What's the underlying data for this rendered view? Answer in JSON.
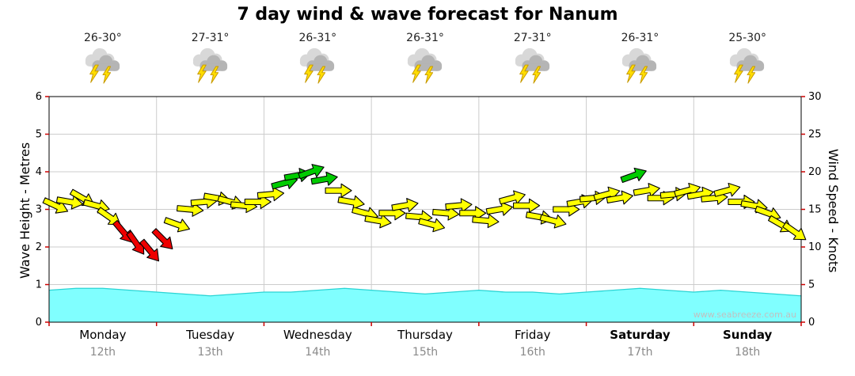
{
  "header": {
    "title": "7 day wind & wave forecast for Nanum"
  },
  "watermark": "www.seabreeze.com.au",
  "chart_data": {
    "type": "area",
    "subtype": "wind-wave-forecast",
    "title": "7 day wind & wave forecast for Nanum",
    "days": [
      {
        "name": "Monday",
        "date": "12th",
        "temp": "26-30°",
        "icon": "storm-icon",
        "bold": false
      },
      {
        "name": "Tuesday",
        "date": "13th",
        "temp": "27-31°",
        "icon": "storm-icon",
        "bold": false
      },
      {
        "name": "Wednesday",
        "date": "14th",
        "temp": "26-31°",
        "icon": "storm-icon",
        "bold": false
      },
      {
        "name": "Thursday",
        "date": "15th",
        "temp": "26-31°",
        "icon": "storm-icon",
        "bold": false
      },
      {
        "name": "Friday",
        "date": "16th",
        "temp": "27-31°",
        "icon": "storm-icon",
        "bold": false
      },
      {
        "name": "Saturday",
        "date": "17th",
        "temp": "26-31°",
        "icon": "storm-icon",
        "bold": true
      },
      {
        "name": "Sunday",
        "date": "18th",
        "temp": "25-30°",
        "icon": "storm-icon",
        "bold": true
      }
    ],
    "left_axis": {
      "label": "Wave Height - Metres",
      "min": 0,
      "max": 6,
      "ticks": [
        0,
        1,
        2,
        3,
        4,
        5,
        6
      ]
    },
    "right_axis": {
      "label": "Wind Speed - Knots",
      "min": 0,
      "max": 30,
      "ticks": [
        0,
        5,
        10,
        15,
        20,
        25,
        30
      ]
    },
    "grid": "on",
    "wave_height_m": {
      "t_step_days": 0.25,
      "values": [
        0.85,
        0.9,
        0.9,
        0.85,
        0.8,
        0.75,
        0.7,
        0.75,
        0.8,
        0.8,
        0.85,
        0.9,
        0.85,
        0.8,
        0.75,
        0.8,
        0.85,
        0.8,
        0.8,
        0.75,
        0.8,
        0.85,
        0.9,
        0.85,
        0.8,
        0.85,
        0.8,
        0.75,
        0.7
      ]
    },
    "wind_arrows": {
      "units": "knots",
      "points": [
        {
          "t": 0.06,
          "kn": 15.5,
          "dir": 25,
          "c": "y"
        },
        {
          "t": 0.19,
          "kn": 16.0,
          "dir": 10,
          "c": "y"
        },
        {
          "t": 0.31,
          "kn": 16.5,
          "dir": 30,
          "c": "y"
        },
        {
          "t": 0.44,
          "kn": 15.5,
          "dir": 15,
          "c": "y"
        },
        {
          "t": 0.56,
          "kn": 14.0,
          "dir": 35,
          "c": "y"
        },
        {
          "t": 0.69,
          "kn": 12.0,
          "dir": 50,
          "c": "r"
        },
        {
          "t": 0.81,
          "kn": 10.5,
          "dir": 55,
          "c": "r"
        },
        {
          "t": 0.94,
          "kn": 9.5,
          "dir": 50,
          "c": "r"
        },
        {
          "t": 1.06,
          "kn": 11.0,
          "dir": 45,
          "c": "r"
        },
        {
          "t": 1.19,
          "kn": 13.0,
          "dir": 20,
          "c": "y"
        },
        {
          "t": 1.31,
          "kn": 15.0,
          "dir": 5,
          "c": "y"
        },
        {
          "t": 1.44,
          "kn": 16.0,
          "dir": -5,
          "c": "y"
        },
        {
          "t": 1.56,
          "kn": 16.5,
          "dir": 10,
          "c": "y"
        },
        {
          "t": 1.69,
          "kn": 16.0,
          "dir": 15,
          "c": "y"
        },
        {
          "t": 1.81,
          "kn": 15.5,
          "dir": 5,
          "c": "y"
        },
        {
          "t": 1.94,
          "kn": 16.0,
          "dir": 0,
          "c": "y"
        },
        {
          "t": 2.06,
          "kn": 17.0,
          "dir": -5,
          "c": "y"
        },
        {
          "t": 2.19,
          "kn": 18.5,
          "dir": -15,
          "c": "g"
        },
        {
          "t": 2.31,
          "kn": 19.5,
          "dir": -10,
          "c": "g"
        },
        {
          "t": 2.44,
          "kn": 20.0,
          "dir": -20,
          "c": "g"
        },
        {
          "t": 2.56,
          "kn": 19.0,
          "dir": -10,
          "c": "g"
        },
        {
          "t": 2.69,
          "kn": 17.5,
          "dir": 0,
          "c": "y"
        },
        {
          "t": 2.81,
          "kn": 16.0,
          "dir": 10,
          "c": "y"
        },
        {
          "t": 2.94,
          "kn": 14.5,
          "dir": 15,
          "c": "y"
        },
        {
          "t": 3.06,
          "kn": 13.5,
          "dir": 10,
          "c": "y"
        },
        {
          "t": 3.19,
          "kn": 14.5,
          "dir": 0,
          "c": "y"
        },
        {
          "t": 3.31,
          "kn": 15.5,
          "dir": -10,
          "c": "y"
        },
        {
          "t": 3.44,
          "kn": 14.0,
          "dir": 5,
          "c": "y"
        },
        {
          "t": 3.56,
          "kn": 13.0,
          "dir": 15,
          "c": "y"
        },
        {
          "t": 3.69,
          "kn": 14.5,
          "dir": 5,
          "c": "y"
        },
        {
          "t": 3.81,
          "kn": 15.5,
          "dir": -5,
          "c": "y"
        },
        {
          "t": 3.94,
          "kn": 14.5,
          "dir": 0,
          "c": "y"
        },
        {
          "t": 4.06,
          "kn": 13.5,
          "dir": 5,
          "c": "y"
        },
        {
          "t": 4.19,
          "kn": 15.0,
          "dir": -10,
          "c": "y"
        },
        {
          "t": 4.31,
          "kn": 16.5,
          "dir": -15,
          "c": "y"
        },
        {
          "t": 4.44,
          "kn": 15.5,
          "dir": 0,
          "c": "y"
        },
        {
          "t": 4.56,
          "kn": 14.0,
          "dir": 10,
          "c": "y"
        },
        {
          "t": 4.69,
          "kn": 13.5,
          "dir": 15,
          "c": "y"
        },
        {
          "t": 4.81,
          "kn": 15.0,
          "dir": 0,
          "c": "y"
        },
        {
          "t": 4.94,
          "kn": 16.0,
          "dir": -10,
          "c": "y"
        },
        {
          "t": 5.06,
          "kn": 16.5,
          "dir": -5,
          "c": "y"
        },
        {
          "t": 5.19,
          "kn": 17.0,
          "dir": -15,
          "c": "y"
        },
        {
          "t": 5.31,
          "kn": 16.5,
          "dir": -10,
          "c": "y"
        },
        {
          "t": 5.44,
          "kn": 19.5,
          "dir": -20,
          "c": "g"
        },
        {
          "t": 5.56,
          "kn": 17.5,
          "dir": -10,
          "c": "y"
        },
        {
          "t": 5.69,
          "kn": 16.5,
          "dir": 0,
          "c": "y"
        },
        {
          "t": 5.81,
          "kn": 17.0,
          "dir": -5,
          "c": "y"
        },
        {
          "t": 5.94,
          "kn": 17.5,
          "dir": -15,
          "c": "y"
        },
        {
          "t": 6.06,
          "kn": 17.0,
          "dir": -10,
          "c": "y"
        },
        {
          "t": 6.19,
          "kn": 16.5,
          "dir": -5,
          "c": "y"
        },
        {
          "t": 6.31,
          "kn": 17.5,
          "dir": -15,
          "c": "y"
        },
        {
          "t": 6.44,
          "kn": 16.0,
          "dir": 0,
          "c": "y"
        },
        {
          "t": 6.56,
          "kn": 15.5,
          "dir": 10,
          "c": "y"
        },
        {
          "t": 6.69,
          "kn": 14.5,
          "dir": 20,
          "c": "y"
        },
        {
          "t": 6.81,
          "kn": 13.0,
          "dir": 30,
          "c": "y"
        },
        {
          "t": 6.94,
          "kn": 12.0,
          "dir": 35,
          "c": "y"
        }
      ]
    },
    "colors": {
      "arrow_yellow": "#FFFF00",
      "arrow_red": "#EE0000",
      "arrow_green": "#00CC00",
      "wave_fill": "#80FFFF",
      "wave_edge": "#2AD4D4",
      "grid": "#CCCCCC",
      "tick": "#CC0000",
      "frame": "#000000",
      "cloud_back": "#D8D8D8",
      "cloud_front": "#B5B5B5",
      "lightning": "#FFDD00",
      "lightning_edge": "#C79A00"
    }
  }
}
